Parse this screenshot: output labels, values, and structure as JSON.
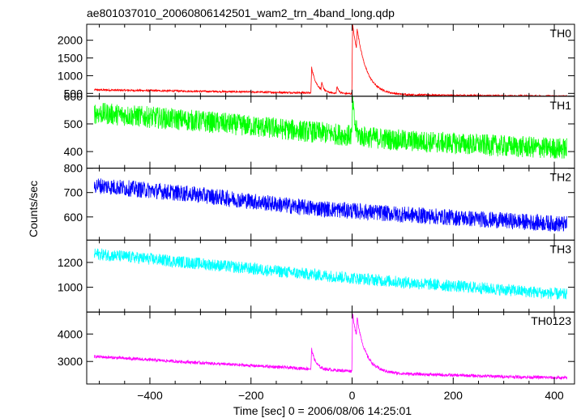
{
  "chart_data": {
    "type": "line",
    "title": "ae801037010_20060806142501_wam2_trn_4band_long.qdp",
    "xlabel": "Time [sec] 0 = 2006/08/06 14:25:01",
    "ylabel": "Counts/sec",
    "xlim": [
      -525,
      440
    ],
    "xticks": [
      -400,
      -200,
      0,
      200,
      400
    ],
    "x_start": -510,
    "x_end": 425,
    "grid": false,
    "panels": [
      {
        "name": "TH0",
        "color": "#ff0000",
        "ylim": [
          420,
          2450
        ],
        "yticks": [
          500,
          1000,
          1500,
          2000
        ],
        "trend": [
          [
            -510,
            600
          ],
          [
            -300,
            560
          ],
          [
            -100,
            520
          ],
          [
            100,
            460
          ],
          [
            300,
            430
          ],
          [
            425,
            420
          ]
        ],
        "noise": 18,
        "events": [
          {
            "t": -80,
            "peak": 1230,
            "tail": 10
          },
          {
            "t": -60,
            "peak": 700,
            "tail": 4
          },
          {
            "t": -30,
            "peak": 700,
            "tail": 4
          },
          {
            "t": 1,
            "peak": 2450,
            "tail": 18
          },
          {
            "t": 10,
            "peak": 1150,
            "tail": 20
          }
        ]
      },
      {
        "name": "TH1",
        "color": "#00ff00",
        "ylim": [
          340,
          600
        ],
        "yticks": [
          400,
          500,
          600
        ],
        "trend": [
          [
            -510,
            540
          ],
          [
            -300,
            510
          ],
          [
            -100,
            475
          ],
          [
            100,
            440
          ],
          [
            300,
            420
          ],
          [
            425,
            410
          ]
        ],
        "noise": 28,
        "events": [
          {
            "t": 1,
            "peak": 590,
            "tail": 4
          }
        ]
      },
      {
        "name": "TH2",
        "color": "#0000ff",
        "ylim": [
          505,
          800
        ],
        "yticks": [
          600,
          700,
          800
        ],
        "trend": [
          [
            -510,
            730
          ],
          [
            -300,
            690
          ],
          [
            -100,
            640
          ],
          [
            100,
            610
          ],
          [
            300,
            585
          ],
          [
            425,
            570
          ]
        ],
        "noise": 24,
        "events": []
      },
      {
        "name": "TH3",
        "color": "#00ffff",
        "ylim": [
          800,
          1380
        ],
        "yticks": [
          1000,
          1200
        ],
        "trend": [
          [
            -510,
            1270
          ],
          [
            -300,
            1190
          ],
          [
            -100,
            1110
          ],
          [
            100,
            1040
          ],
          [
            300,
            980
          ],
          [
            425,
            940
          ]
        ],
        "noise": 35,
        "events": []
      },
      {
        "name": "TH0123",
        "color": "#ff00ff",
        "ylim": [
          2180,
          4800
        ],
        "yticks": [
          3000,
          4000
        ],
        "trend": [
          [
            -510,
            3180
          ],
          [
            -300,
            2950
          ],
          [
            -100,
            2750
          ],
          [
            100,
            2550
          ],
          [
            300,
            2450
          ],
          [
            425,
            2400
          ]
        ],
        "noise": 40,
        "events": [
          {
            "t": -80,
            "peak": 3450,
            "tail": 8
          },
          {
            "t": 1,
            "peak": 4750,
            "tail": 16
          },
          {
            "t": 10,
            "peak": 3400,
            "tail": 18
          }
        ]
      }
    ]
  }
}
